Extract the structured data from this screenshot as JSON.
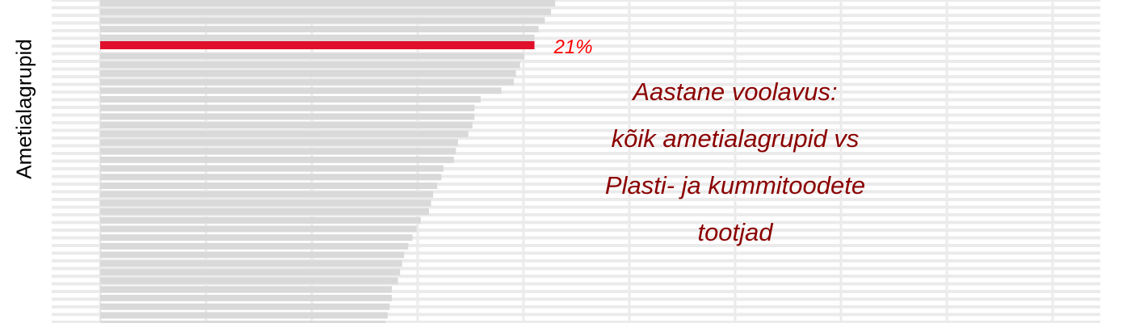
{
  "chart_data": {
    "type": "bar",
    "orientation": "horizontal",
    "ylabel": "Ametialagrupid",
    "highlight": {
      "value": 21,
      "label": "21%",
      "color": "#e0102a"
    },
    "values": [
      22,
      21.8,
      21.5,
      21.2,
      21,
      20.5,
      20.3,
      20.1,
      20,
      19.4,
      18.4,
      18.1,
      18.1,
      18,
      17.8,
      17.3,
      17.2,
      17.1,
      16.6,
      16.5,
      16.3,
      16.1,
      16,
      15.9,
      15.5,
      15.3,
      15.1,
      14.9,
      14.7,
      14.6,
      14.5,
      14.4,
      14.1,
      14.1,
      14,
      13.9,
      13.8
    ],
    "base_color": "#d9d9d9",
    "annotation_lines": [
      "Aastane voolavus:",
      "kõik ametialagrupid vs",
      "Plasti- ja kummitoodete",
      "tootjad"
    ],
    "annotation_color": "#8b0000"
  }
}
